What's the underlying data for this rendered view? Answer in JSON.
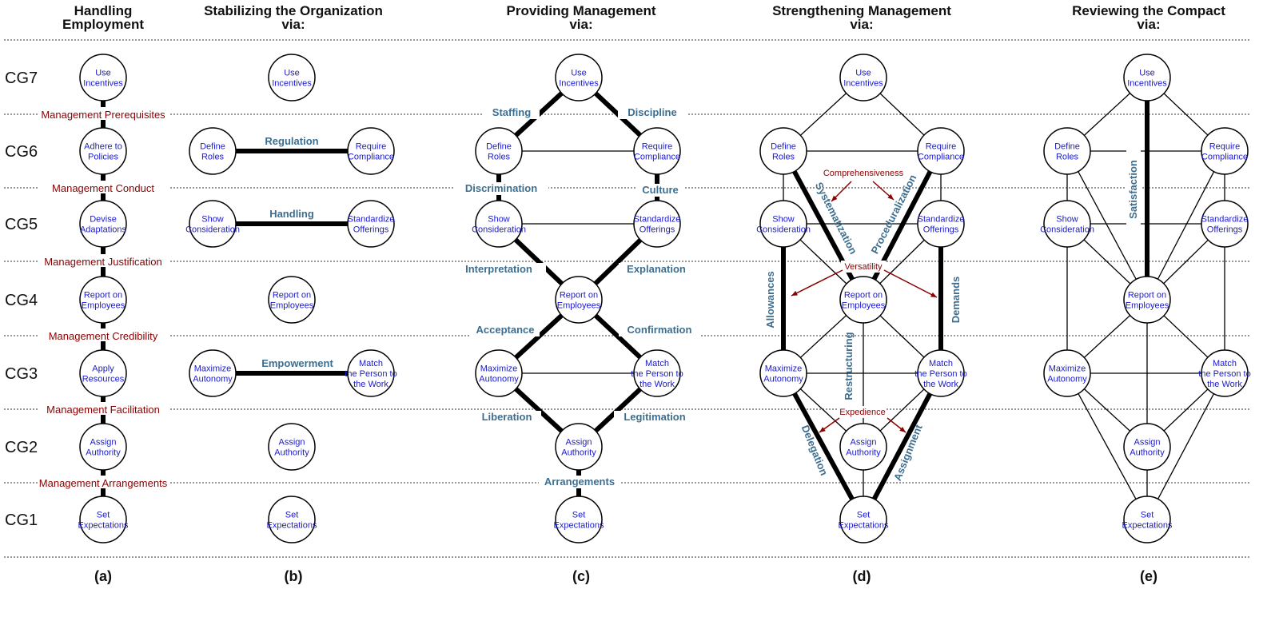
{
  "nodes": {
    "use": [
      "Use",
      "Incentives"
    ],
    "adhere": [
      "Adhere to",
      "Policies"
    ],
    "define": [
      "Define",
      "Roles"
    ],
    "require": [
      "Require",
      "Compliance"
    ],
    "devise": [
      "Devise",
      "Adaptations"
    ],
    "show": [
      "Show",
      "Consideration"
    ],
    "standardize": [
      "Standardize",
      "Offerings"
    ],
    "report": [
      "Report on",
      "Employees"
    ],
    "apply": [
      "Apply",
      "Resources"
    ],
    "maximize": [
      "Maximize",
      "Autonomy"
    ],
    "match": [
      "Match",
      "the Person to",
      "the Work"
    ],
    "assign": [
      "Assign",
      "Authority"
    ],
    "set": [
      "Set",
      "Expectations"
    ]
  },
  "columns": [
    {
      "key": "a",
      "title": [
        "Handling",
        "Employment"
      ],
      "label": "(a)"
    },
    {
      "key": "b",
      "title": [
        "Stabilizing the Organization",
        "via:"
      ],
      "label": "(b)"
    },
    {
      "key": "c",
      "title": [
        "Providing Management",
        "via:"
      ],
      "label": "(c)"
    },
    {
      "key": "d",
      "title": [
        "Strengthening Management",
        "via:"
      ],
      "label": "(d)"
    },
    {
      "key": "e",
      "title": [
        "Reviewing the Compact",
        "via:"
      ],
      "label": "(e)"
    }
  ],
  "rows": [
    "CG7",
    "CG6",
    "CG5",
    "CG4",
    "CG3",
    "CG2",
    "CG1"
  ],
  "panel_a_links": [
    "Management Prerequisites",
    "Management Conduct",
    "Management Justification",
    "Management Credibility",
    "Management Facilitation",
    "Management Arrangements"
  ],
  "panel_b_links": [
    "Regulation",
    "Handling",
    "Empowerment"
  ],
  "panel_c_links": {
    "staffing": "Staffing",
    "discipline": "Discipline",
    "discrimination": "Discrimination",
    "culture": "Culture",
    "interpretation": "Interpretation",
    "explanation": "Explanation",
    "acceptance": "Acceptance",
    "confirmation": "Confirmation",
    "liberation": "Liberation",
    "legitimation": "Legitimation",
    "arrangements": "Arrangements"
  },
  "panel_d_links": {
    "systematization": "Systematization",
    "proceduralization": "Proceduralization",
    "allowances": "Allowances",
    "demands": "Demands",
    "restructuring": "Restructuring",
    "delegation": "Delegation",
    "assignment": "Assignment",
    "comprehensiveness": "Comprehensiveness",
    "versatility": "Versatility",
    "expedience": "Expedience"
  },
  "panel_e_links": {
    "satisfaction": "Satisfaction"
  },
  "colors": {
    "node_text": "#1a1acc",
    "blue_label": "#3d6e8f",
    "red_label": "#8b0000",
    "edge": "#000000"
  }
}
